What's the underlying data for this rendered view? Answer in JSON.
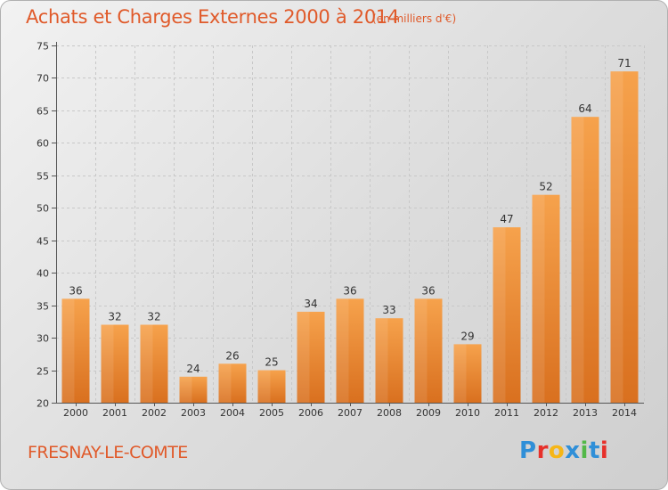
{
  "header": {
    "title": "Achats et Charges Externes 2000 à 2014",
    "unit": "(en milliers d'€)"
  },
  "footer": {
    "place": "FRESNAY-LE-COMTE",
    "logo_text": "Proxiti",
    "logo_colors": [
      "#2f8fd8",
      "#e7302a",
      "#f6b617",
      "#2f8fd8",
      "#53b848",
      "#2f8fd8",
      "#e7302a"
    ]
  },
  "colors": {
    "title": "#e05a2a",
    "bar_light": "#f6a24c",
    "bar_dark": "#d9782a",
    "grid": "#c8c8c8"
  },
  "chart_data": {
    "type": "bar",
    "title": "Achats et Charges Externes 2000 à 2014",
    "subtitle": "(en milliers d'€)",
    "categories": [
      "2000",
      "2001",
      "2002",
      "2003",
      "2004",
      "2005",
      "2006",
      "2007",
      "2008",
      "2009",
      "2010",
      "2011",
      "2012",
      "2013",
      "2014"
    ],
    "values": [
      36,
      32,
      32,
      24,
      26,
      25,
      34,
      36,
      33,
      36,
      29,
      47,
      52,
      64,
      71
    ],
    "ylim": [
      20,
      75
    ],
    "yticks": [
      20,
      25,
      30,
      35,
      40,
      45,
      50,
      55,
      60,
      65,
      70,
      75
    ],
    "grid": true,
    "xlabel": "",
    "ylabel": ""
  }
}
